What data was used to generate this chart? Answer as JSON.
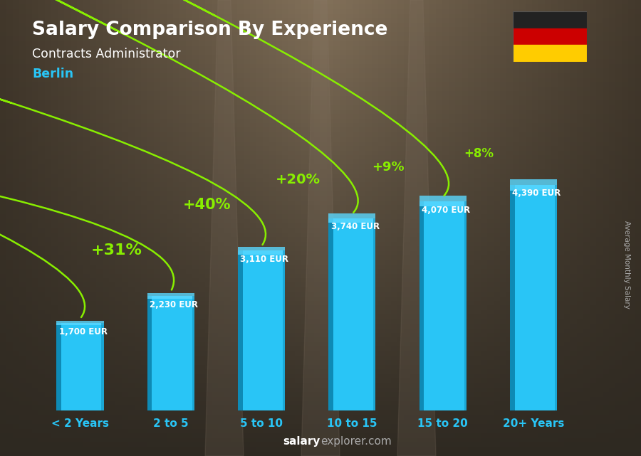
{
  "title": "Salary Comparison By Experience",
  "subtitle": "Contracts Administrator",
  "city": "Berlin",
  "ylabel": "Average Monthly Salary",
  "categories": [
    "< 2 Years",
    "2 to 5",
    "5 to 10",
    "10 to 15",
    "15 to 20",
    "20+ Years"
  ],
  "values": [
    1700,
    2230,
    3110,
    3740,
    4070,
    4390
  ],
  "value_labels": [
    "1,700 EUR",
    "2,230 EUR",
    "3,110 EUR",
    "3,740 EUR",
    "4,070 EUR",
    "4,390 EUR"
  ],
  "pct_labels": [
    "+31%",
    "+40%",
    "+20%",
    "+9%",
    "+8%"
  ],
  "bar_color": "#29c5f6",
  "bar_color_dark": "#0e8ab5",
  "bar_color_top": "#5ad8ff",
  "pct_color": "#88ee00",
  "title_color": "#ffffff",
  "subtitle_color": "#ffffff",
  "city_color": "#29c5f6",
  "value_label_color": "#ffffff",
  "footer_bold_color": "#ffffff",
  "footer_regular_color": "#aaaaaa",
  "ylim": [
    0,
    5500
  ],
  "flag_colors": [
    "#222222",
    "#CC0000",
    "#FFCC00"
  ],
  "ylabel_color": "#aaaaaa",
  "bg_left": "#4a3f35",
  "bg_center": "#7a7060",
  "bg_right": "#4a3f35",
  "tick_label_color": "#29c5f6"
}
